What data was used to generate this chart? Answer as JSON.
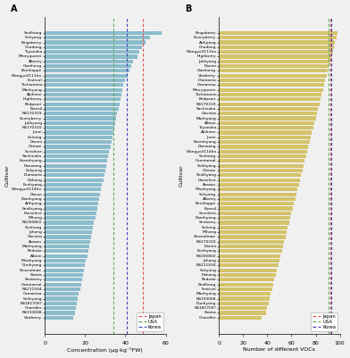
{
  "panel_A": {
    "cultivars": [
      "Seolhong",
      "Suhyang",
      "Kingsberry",
      "Chodong",
      "Toyonoka",
      "Merryqueen",
      "Alberry",
      "Gamhong",
      "Benihoppe",
      "Wongyo3111ho",
      "Festival",
      "Tochiotome",
      "Manhyang",
      "Akihime",
      "Highberry",
      "Redpeari",
      "Kumsil",
      "NS170319",
      "Sunnyberry",
      "Jukhyang",
      "NS170310",
      "Jinmi",
      "Suhong",
      "Danmi",
      "Okmae",
      "Sunshine",
      "Sachinoka",
      "Kuemhyang",
      "Daewang",
      "Sukyung",
      "Diamante",
      "Dahong",
      "Eunhyang",
      "Wongyo3114ho",
      "Daeun",
      "Damhyang",
      "Arihyang",
      "Seolhyang",
      "Darselect",
      "Mihong",
      "NS160802",
      "Sunhong",
      "Johong",
      "Gaviota",
      "Amaou",
      "Maehyang",
      "Redstar",
      "Albion",
      "Misohyang",
      "Dunhyang",
      "Sinseolmae",
      "Sianta",
      "Seeberry",
      "Camiroreal",
      "NS211504",
      "Camarosa",
      "Sukhyang",
      "NS181700?",
      "Chandler",
      "NS193008",
      "Vitaberry"
    ],
    "values": [
      58,
      52,
      50,
      48,
      47,
      46,
      44,
      43,
      42,
      41,
      40,
      39,
      38.5,
      38,
      37.5,
      37,
      36.5,
      36,
      35.5,
      35,
      34.5,
      34,
      33.5,
      33,
      32.5,
      32,
      31.5,
      31,
      30.5,
      30,
      29.5,
      29,
      28.5,
      28,
      27.5,
      27,
      26.5,
      26,
      25.5,
      25,
      24.5,
      24,
      23.5,
      23,
      22.5,
      22,
      21.5,
      21,
      20.5,
      20,
      19.5,
      19,
      18.5,
      18,
      17.5,
      17,
      16.5,
      16,
      15.5,
      15,
      14
    ],
    "ref_japan": 48.5,
    "ref_usa": 34.0,
    "ref_korea": 40.5,
    "xlabel": "Concentration (μg·kg⁻¹FW)",
    "xlim": [
      0,
      60
    ],
    "xticks": [
      0,
      20,
      40,
      60
    ],
    "bar_color": "#8bbccc",
    "japan_color": "#e05555",
    "usa_color": "#5aaa5a",
    "korea_color": "#4444bb"
  },
  "panel_B": {
    "cultivars": [
      "Kingsberry",
      "Sunnyberry",
      "Arihyang",
      "Chodong",
      "Wongyo3111ho",
      "Highberry",
      "Jukhyang",
      "Daeun",
      "Gamhong",
      "Vitaberry",
      "Diamante",
      "Camarosa",
      "Merryqueen",
      "Tochiotome",
      "Redpeari",
      "NS170319",
      "Sachinoka",
      "Gaviota",
      "Maehyang",
      "Albion",
      "Toyonoka",
      "Akihime",
      "Jinmi",
      "Kuemhyang",
      "Daewang",
      "Wongyo3114ho",
      "Sunhong",
      "Camiroreal",
      "Sukhyang",
      "Okmae",
      "Seolhyang",
      "Darselect",
      "Amaou",
      "Misohyang",
      "Suhyang",
      "Alberry",
      "Benihoppe",
      "Kumsil",
      "Sunshine",
      "Damhyang",
      "Seeberry",
      "Suhong",
      "Mihong",
      "Sinseolmae",
      "NS170310",
      "Danmi",
      "Eunhyang",
      "NS160802",
      "Johong",
      "NS211504",
      "Sukyung",
      "Dahong",
      "Redstar",
      "Seolhong",
      "Festival",
      "Manhyang",
      "NS193008",
      "Dunhyang",
      "NS181700?",
      "Sianta",
      "Chandler"
    ],
    "values": [
      98,
      97,
      96,
      95,
      94,
      93,
      92,
      91,
      90,
      89,
      88,
      87,
      86,
      85,
      84,
      83,
      82,
      81,
      80,
      79,
      78,
      77,
      76,
      75,
      74,
      73,
      72,
      71,
      70,
      69,
      68,
      67,
      66,
      65,
      64,
      63,
      62,
      61,
      60,
      59,
      58,
      57,
      56,
      55,
      54,
      53,
      52,
      51,
      50,
      49,
      48,
      47,
      46,
      45,
      44,
      43,
      42,
      41,
      40,
      39,
      35
    ],
    "ref_japan": 92,
    "ref_usa": 91,
    "ref_korea": 93,
    "xlabel": "Number of different VOCs",
    "xlim": [
      0,
      100
    ],
    "xticks": [
      0,
      20,
      40,
      60,
      80,
      100
    ],
    "bar_color": "#d4c36a",
    "japan_color": "#e05555",
    "usa_color": "#5aaa5a",
    "korea_color": "#4444bb"
  },
  "legend_japan": "Japan",
  "legend_usa": "USA",
  "legend_korea": "Korea",
  "bg_color": "#f0f0f0"
}
